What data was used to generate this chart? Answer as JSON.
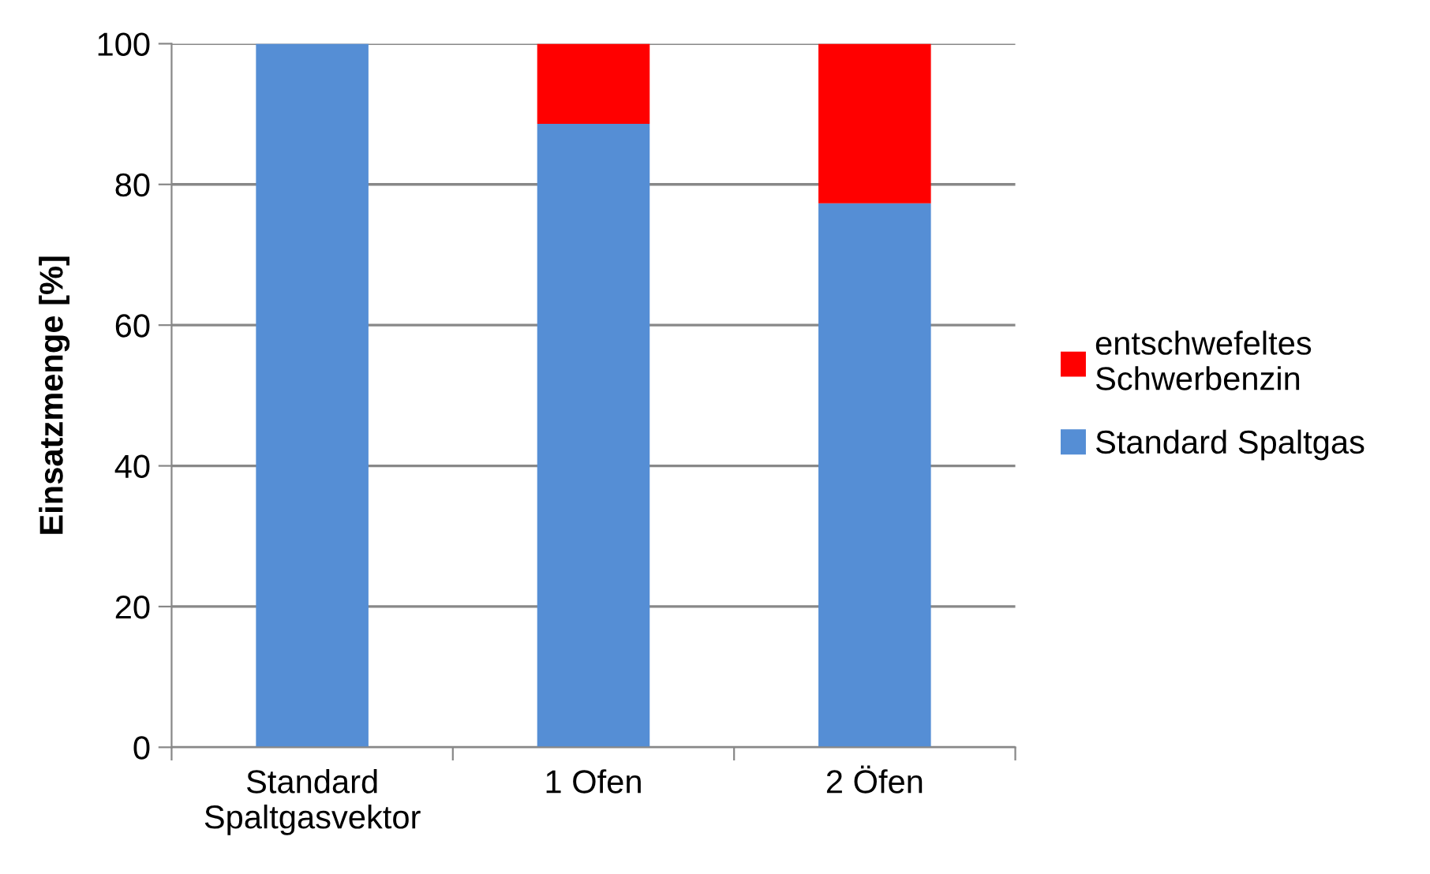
{
  "chart_data": {
    "type": "bar",
    "stacked": true,
    "ylabel": "Einsatzmenge [%]",
    "categories": [
      "Standard\nSpaltgasvektor",
      "1 Ofen",
      "2 Öfen"
    ],
    "series": [
      {
        "name": "Standard Spaltgas",
        "color": "#558ed5",
        "values": [
          100,
          88.6,
          77.3
        ]
      },
      {
        "name": "entschwefeltes\nSchwerbenzin",
        "color": "#ff0000",
        "values": [
          0,
          11.4,
          22.7
        ]
      }
    ],
    "ylim": [
      0,
      100
    ],
    "yticks": [
      0,
      20,
      40,
      60,
      80,
      100
    ],
    "grid": "y",
    "legend": "right"
  }
}
